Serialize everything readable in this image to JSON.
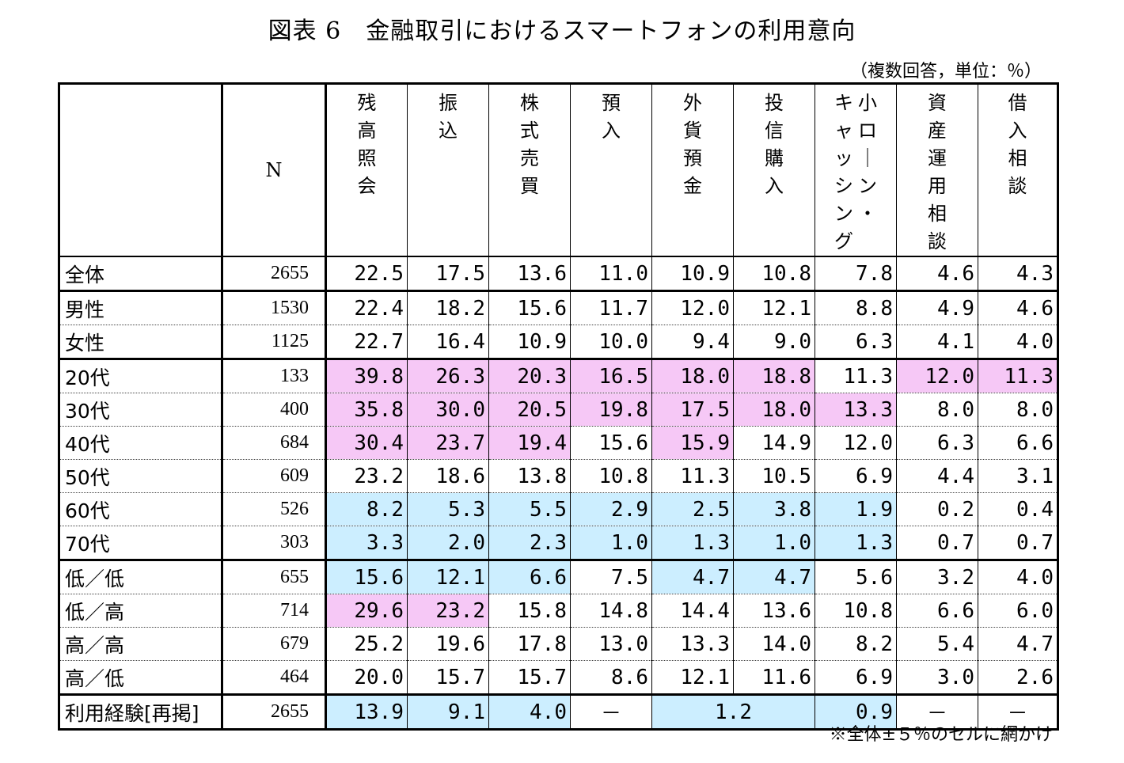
{
  "title": "図表 6　金融取引におけるスマートフォンの利用意向",
  "unit": "（複数回答，単位：％）",
  "note": "※全体±５％のセルに網かけ",
  "headers": {
    "n": "N",
    "columns": [
      {
        "lines": [
          "残高照会"
        ]
      },
      {
        "lines": [
          "振込"
        ]
      },
      {
        "lines": [
          "株式売買"
        ]
      },
      {
        "lines": [
          "預入"
        ]
      },
      {
        "lines": [
          "外貨預金"
        ]
      },
      {
        "lines": [
          "投信購入"
        ]
      },
      {
        "lines": [
          "小ローン・",
          "キャッシング"
        ]
      },
      {
        "lines": [
          "資産運用相談"
        ]
      },
      {
        "lines": [
          "借入相談"
        ]
      }
    ]
  },
  "shading_colors": {
    "high": "#f6c8f6",
    "low": "#cceeff"
  },
  "rows": [
    {
      "label": "全体",
      "n": "2655",
      "values": [
        "22.5",
        "17.5",
        "13.6",
        "11.0",
        "10.9",
        "10.8",
        "7.8",
        "4.6",
        "4.3"
      ],
      "shade": [
        "",
        "",
        "",
        "",
        "",
        "",
        "",
        "",
        ""
      ]
    },
    {
      "label": "男性",
      "n": "1530",
      "values": [
        "22.4",
        "18.2",
        "15.6",
        "11.7",
        "12.0",
        "12.1",
        "8.8",
        "4.9",
        "4.6"
      ],
      "shade": [
        "",
        "",
        "",
        "",
        "",
        "",
        "",
        "",
        ""
      ]
    },
    {
      "label": "女性",
      "n": "1125",
      "values": [
        "22.7",
        "16.4",
        "10.9",
        "10.0",
        "9.4",
        "9.0",
        "6.3",
        "4.1",
        "4.0"
      ],
      "shade": [
        "",
        "",
        "",
        "",
        "",
        "",
        "",
        "",
        ""
      ]
    },
    {
      "label": "20代",
      "n": "133",
      "values": [
        "39.8",
        "26.3",
        "20.3",
        "16.5",
        "18.0",
        "18.8",
        "11.3",
        "12.0",
        "11.3"
      ],
      "shade": [
        "p",
        "p",
        "p",
        "p",
        "p",
        "p",
        "",
        "p",
        "p"
      ]
    },
    {
      "label": "30代",
      "n": "400",
      "values": [
        "35.8",
        "30.0",
        "20.5",
        "19.8",
        "17.5",
        "18.0",
        "13.3",
        "8.0",
        "8.0"
      ],
      "shade": [
        "p",
        "p",
        "p",
        "p",
        "p",
        "p",
        "p",
        "",
        ""
      ]
    },
    {
      "label": "40代",
      "n": "684",
      "values": [
        "30.4",
        "23.7",
        "19.4",
        "15.6",
        "15.9",
        "14.9",
        "12.0",
        "6.3",
        "6.6"
      ],
      "shade": [
        "p",
        "p",
        "p",
        "",
        "p",
        "",
        "",
        "",
        ""
      ]
    },
    {
      "label": "50代",
      "n": "609",
      "values": [
        "23.2",
        "18.6",
        "13.8",
        "10.8",
        "11.3",
        "10.5",
        "6.9",
        "4.4",
        "3.1"
      ],
      "shade": [
        "",
        "",
        "",
        "",
        "",
        "",
        "",
        "",
        ""
      ]
    },
    {
      "label": "60代",
      "n": "526",
      "values": [
        "8.2",
        "5.3",
        "5.5",
        "2.9",
        "2.5",
        "3.8",
        "1.9",
        "0.2",
        "0.4"
      ],
      "shade": [
        "b",
        "b",
        "b",
        "b",
        "b",
        "b",
        "b",
        "",
        ""
      ]
    },
    {
      "label": "70代",
      "n": "303",
      "values": [
        "3.3",
        "2.0",
        "2.3",
        "1.0",
        "1.3",
        "1.0",
        "1.3",
        "0.7",
        "0.7"
      ],
      "shade": [
        "b",
        "b",
        "b",
        "b",
        "b",
        "b",
        "b",
        "",
        ""
      ]
    },
    {
      "label": "低／低",
      "n": "655",
      "values": [
        "15.6",
        "12.1",
        "6.6",
        "7.5",
        "4.7",
        "4.7",
        "5.6",
        "3.2",
        "4.0"
      ],
      "shade": [
        "b",
        "b",
        "b",
        "",
        "b",
        "b",
        "",
        "",
        ""
      ]
    },
    {
      "label": "低／高",
      "n": "714",
      "values": [
        "29.6",
        "23.2",
        "15.8",
        "14.8",
        "14.4",
        "13.6",
        "10.8",
        "6.6",
        "6.0"
      ],
      "shade": [
        "p",
        "p",
        "",
        "",
        "",
        "",
        "",
        "",
        ""
      ]
    },
    {
      "label": "高／高",
      "n": "679",
      "values": [
        "25.2",
        "19.6",
        "17.8",
        "13.0",
        "13.3",
        "14.0",
        "8.2",
        "5.4",
        "4.7"
      ],
      "shade": [
        "",
        "",
        "",
        "",
        "",
        "",
        "",
        "",
        ""
      ]
    },
    {
      "label": "高／低",
      "n": "464",
      "values": [
        "20.0",
        "15.7",
        "15.7",
        "8.6",
        "12.1",
        "11.6",
        "6.9",
        "3.0",
        "2.6"
      ],
      "shade": [
        "",
        "",
        "",
        "",
        "",
        "",
        "",
        "",
        ""
      ]
    }
  ],
  "last_row": {
    "label": "利用経験[再掲]",
    "n": "2655",
    "v0": "13.9",
    "v1": "9.1",
    "v2": "4.0",
    "v3": "－",
    "v45": "1.2",
    "v6": "0.9",
    "v7": "－",
    "v8": "－"
  }
}
